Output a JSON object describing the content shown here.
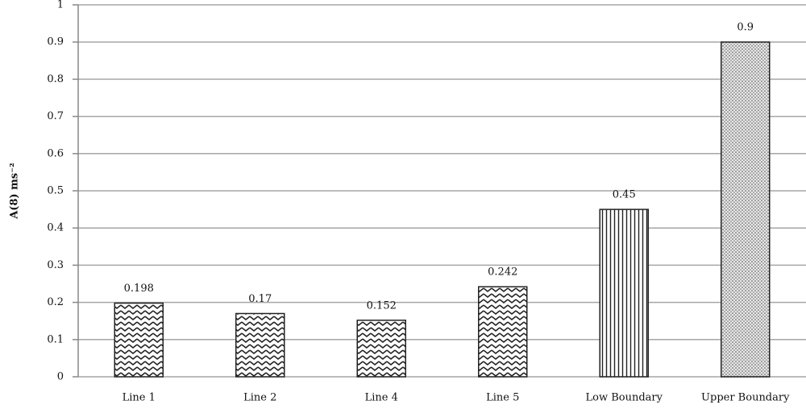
{
  "chart_data": {
    "type": "bar",
    "y_label": "A(8) ms⁻²",
    "categories": [
      "Line 1",
      "Line 2",
      "Line 4",
      "Line 5",
      "Low Boundary",
      "Upper Boundary"
    ],
    "values": [
      0.198,
      0.17,
      0.152,
      0.242,
      0.45,
      0.9
    ],
    "patterns": [
      "zigzag",
      "zigzag",
      "zigzag",
      "zigzag",
      "vertical-lines",
      "dots"
    ],
    "color": "#222222",
    "ylim": [
      0,
      1
    ],
    "yticks": [
      0,
      0.1,
      0.2,
      0.3,
      0.4,
      0.5,
      0.6,
      0.7,
      0.8,
      0.9,
      1
    ],
    "grid": true
  }
}
